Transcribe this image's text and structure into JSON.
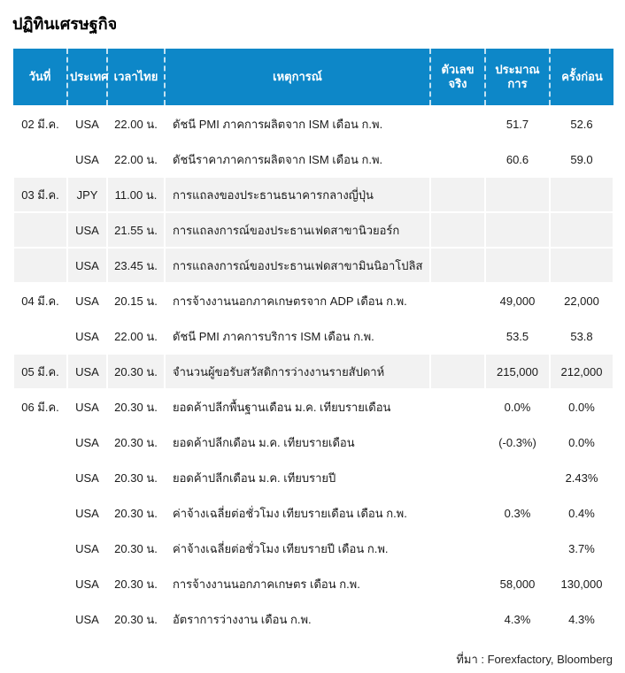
{
  "page": {
    "title": "ปฏิทินเศรษฐกิจ",
    "source_note": "ที่มา : Forexfactory, Bloomberg"
  },
  "colors": {
    "header_bg": "#0d87c8",
    "shaded_row_bg": "#f2f2f2",
    "text": "#1a1a1a",
    "header_text": "#ffffff"
  },
  "table": {
    "columns": [
      {
        "key": "date",
        "label": "วันที่"
      },
      {
        "key": "country",
        "label": "ประเทศ"
      },
      {
        "key": "time",
        "label": "เวลาไทย"
      },
      {
        "key": "event",
        "label": "เหตุการณ์"
      },
      {
        "key": "actual",
        "label": "ตัวเลขจริง"
      },
      {
        "key": "estimate",
        "label": "ประมาณ\nการ"
      },
      {
        "key": "previous",
        "label": "ครั้งก่อน"
      }
    ],
    "rows": [
      {
        "date": "02 มี.ค.",
        "country": "USA",
        "time": "22.00 น.",
        "event": "ดัชนี PMI ภาคการผลิตจาก ISM เดือน ก.พ.",
        "actual": "",
        "estimate": "51.7",
        "previous": "52.6",
        "shaded": false
      },
      {
        "date": "",
        "country": "USA",
        "time": "22.00 น.",
        "event": "ดัชนีราคาภาคการผลิตจาก ISM เดือน ก.พ.",
        "actual": "",
        "estimate": "60.6",
        "previous": "59.0",
        "shaded": false
      },
      {
        "date": "03 มี.ค.",
        "country": "JPY",
        "time": "11.00 น.",
        "event": "การแถลงของประธานธนาคารกลางญี่ปุ่น",
        "actual": "",
        "estimate": "",
        "previous": "",
        "shaded": true
      },
      {
        "date": "",
        "country": "USA",
        "time": "21.55 น.",
        "event": "การแถลงการณ์ของประธานเฟดสาขานิวยอร์ก",
        "actual": "",
        "estimate": "",
        "previous": "",
        "shaded": true
      },
      {
        "date": "",
        "country": "USA",
        "time": "23.45 น.",
        "event": "การแถลงการณ์ของประธานเฟดสาขามินนิอาโปลิส",
        "actual": "",
        "estimate": "",
        "previous": "",
        "shaded": true
      },
      {
        "date": "04 มี.ค.",
        "country": "USA",
        "time": "20.15 น.",
        "event": "การจ้างงานนอกภาคเกษตรจาก ADP เดือน ก.พ.",
        "actual": "",
        "estimate": "49,000",
        "previous": "22,000",
        "shaded": false
      },
      {
        "date": "",
        "country": "USA",
        "time": "22.00 น.",
        "event": "ดัชนี PMI ภาคการบริการ ISM เดือน ก.พ.",
        "actual": "",
        "estimate": "53.5",
        "previous": "53.8",
        "shaded": false
      },
      {
        "date": "05 มี.ค.",
        "country": "USA",
        "time": "20.30 น.",
        "event": "จำนวนผู้ขอรับสวัสดิการว่างงานรายสัปดาห์",
        "actual": "",
        "estimate": "215,000",
        "previous": "212,000",
        "shaded": true
      },
      {
        "date": "06 มี.ค.",
        "country": "USA",
        "time": "20.30 น.",
        "event": "ยอดค้าปลีกพื้นฐานเดือน ม.ค. เทียบรายเดือน",
        "actual": "",
        "estimate": "0.0%",
        "previous": "0.0%",
        "shaded": false
      },
      {
        "date": "",
        "country": "USA",
        "time": "20.30 น.",
        "event": "ยอดค้าปลีกเดือน ม.ค. เทียบรายเดือน",
        "actual": "",
        "estimate": "(-0.3%)",
        "previous": "0.0%",
        "shaded": false
      },
      {
        "date": "",
        "country": "USA",
        "time": "20.30 น.",
        "event": "ยอดค้าปลีกเดือน ม.ค. เทียบรายปี",
        "actual": "",
        "estimate": "",
        "previous": "2.43%",
        "shaded": false
      },
      {
        "date": "",
        "country": "USA",
        "time": "20.30 น.",
        "event": "ค่าจ้างเฉลี่ยต่อชั่วโมง เทียบรายเดือน เดือน ก.พ.",
        "actual": "",
        "estimate": "0.3%",
        "previous": "0.4%",
        "shaded": false
      },
      {
        "date": "",
        "country": "USA",
        "time": "20.30 น.",
        "event": "ค่าจ้างเฉลี่ยต่อชั่วโมง เทียบรายปี เดือน ก.พ.",
        "actual": "",
        "estimate": "",
        "previous": "3.7%",
        "shaded": false
      },
      {
        "date": "",
        "country": "USA",
        "time": "20.30 น.",
        "event": "การจ้างงานนอกภาคเกษตร เดือน ก.พ.",
        "actual": "",
        "estimate": "58,000",
        "previous": "130,000",
        "shaded": false
      },
      {
        "date": "",
        "country": "USA",
        "time": "20.30 น.",
        "event": "อัตราการว่างงาน เดือน ก.พ.",
        "actual": "",
        "estimate": "4.3%",
        "previous": "4.3%",
        "shaded": false
      }
    ]
  }
}
